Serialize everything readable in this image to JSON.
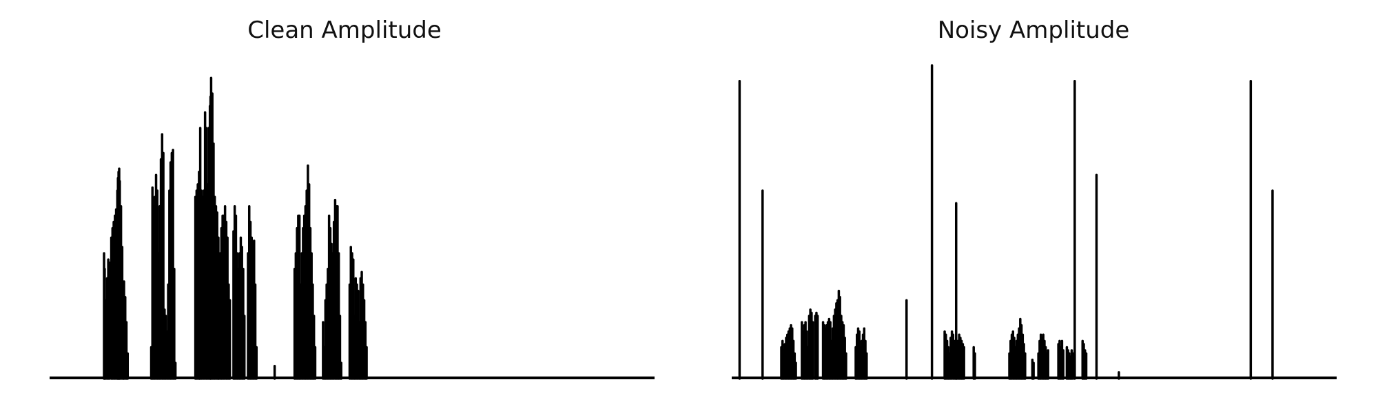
{
  "chart_data": [
    {
      "type": "area",
      "title": "Clean Amplitude",
      "xlabel": "",
      "ylabel": "",
      "axes_visible": false,
      "grid": false,
      "xlim": [
        0,
        1000
      ],
      "ylim": [
        0,
        1.0
      ],
      "color": "#000000",
      "peaks": [
        [
          90,
          0.4
        ],
        [
          91,
          0.35
        ],
        [
          93,
          0.25
        ],
        [
          95,
          0.32
        ],
        [
          97,
          0.38
        ],
        [
          99,
          0.37
        ],
        [
          102,
          0.45
        ],
        [
          104,
          0.48
        ],
        [
          106,
          0.5
        ],
        [
          108,
          0.52
        ],
        [
          110,
          0.54
        ],
        [
          112,
          0.6
        ],
        [
          113,
          0.64
        ],
        [
          114,
          0.66
        ],
        [
          115,
          0.67
        ],
        [
          116,
          0.63
        ],
        [
          118,
          0.55
        ],
        [
          120,
          0.42
        ],
        [
          122,
          0.3
        ],
        [
          123,
          0.31
        ],
        [
          125,
          0.26
        ],
        [
          127,
          0.18
        ],
        [
          129,
          0.08
        ],
        [
          168,
          0.1
        ],
        [
          170,
          0.61
        ],
        [
          172,
          0.55
        ],
        [
          174,
          0.58
        ],
        [
          176,
          0.65
        ],
        [
          178,
          0.6
        ],
        [
          180,
          0.4
        ],
        [
          182,
          0.55
        ],
        [
          184,
          0.7
        ],
        [
          186,
          0.78
        ],
        [
          188,
          0.72
        ],
        [
          190,
          0.22
        ],
        [
          192,
          0.2
        ],
        [
          194,
          0.15
        ],
        [
          196,
          0.3
        ],
        [
          198,
          0.6
        ],
        [
          200,
          0.69
        ],
        [
          202,
          0.72
        ],
        [
          204,
          0.73
        ],
        [
          206,
          0.35
        ],
        [
          208,
          0.05
        ],
        [
          241,
          0.58
        ],
        [
          243,
          0.6
        ],
        [
          245,
          0.62
        ],
        [
          247,
          0.66
        ],
        [
          248,
          0.55
        ],
        [
          249,
          0.8
        ],
        [
          251,
          0.6
        ],
        [
          253,
          0.58
        ],
        [
          255,
          0.6
        ],
        [
          257,
          0.85
        ],
        [
          259,
          0.8
        ],
        [
          261,
          0.62
        ],
        [
          263,
          0.8
        ],
        [
          265,
          0.87
        ],
        [
          266,
          0.9
        ],
        [
          267,
          0.96
        ],
        [
          269,
          0.91
        ],
        [
          271,
          0.75
        ],
        [
          273,
          0.58
        ],
        [
          275,
          0.55
        ],
        [
          277,
          0.53
        ],
        [
          279,
          0.45
        ],
        [
          280,
          0.33
        ],
        [
          282,
          0.4
        ],
        [
          284,
          0.48
        ],
        [
          286,
          0.52
        ],
        [
          288,
          0.52
        ],
        [
          290,
          0.55
        ],
        [
          292,
          0.5
        ],
        [
          294,
          0.45
        ],
        [
          296,
          0.3
        ],
        [
          298,
          0.25
        ],
        [
          304,
          0.47
        ],
        [
          306,
          0.55
        ],
        [
          308,
          0.52
        ],
        [
          310,
          0.4
        ],
        [
          312,
          0.35
        ],
        [
          314,
          0.4
        ],
        [
          316,
          0.45
        ],
        [
          318,
          0.42
        ],
        [
          320,
          0.35
        ],
        [
          322,
          0.2
        ],
        [
          328,
          0.4
        ],
        [
          330,
          0.55
        ],
        [
          332,
          0.5
        ],
        [
          334,
          0.45
        ],
        [
          336,
          0.43
        ],
        [
          338,
          0.44
        ],
        [
          340,
          0.3
        ],
        [
          342,
          0.1
        ],
        [
          372,
          0.04
        ],
        [
          405,
          0.35
        ],
        [
          407,
          0.4
        ],
        [
          409,
          0.48
        ],
        [
          411,
          0.52
        ],
        [
          413,
          0.52
        ],
        [
          415,
          0.3
        ],
        [
          417,
          0.4
        ],
        [
          419,
          0.48
        ],
        [
          421,
          0.52
        ],
        [
          423,
          0.55
        ],
        [
          425,
          0.6
        ],
        [
          427,
          0.68
        ],
        [
          429,
          0.62
        ],
        [
          431,
          0.48
        ],
        [
          433,
          0.4
        ],
        [
          435,
          0.3
        ],
        [
          437,
          0.2
        ],
        [
          439,
          0.1
        ],
        [
          452,
          0.18
        ],
        [
          454,
          0.1
        ],
        [
          456,
          0.25
        ],
        [
          458,
          0.3
        ],
        [
          460,
          0.35
        ],
        [
          462,
          0.52
        ],
        [
          464,
          0.48
        ],
        [
          466,
          0.43
        ],
        [
          468,
          0.4
        ],
        [
          470,
          0.5
        ],
        [
          472,
          0.57
        ],
        [
          474,
          0.55
        ],
        [
          476,
          0.55
        ],
        [
          478,
          0.4
        ],
        [
          480,
          0.2
        ],
        [
          482,
          0.05
        ],
        [
          496,
          0.3
        ],
        [
          498,
          0.42
        ],
        [
          500,
          0.4
        ],
        [
          502,
          0.38
        ],
        [
          504,
          0.2
        ],
        [
          506,
          0.32
        ],
        [
          508,
          0.3
        ],
        [
          510,
          0.28
        ],
        [
          512,
          0.18
        ],
        [
          514,
          0.32
        ],
        [
          516,
          0.34
        ],
        [
          518,
          0.3
        ],
        [
          520,
          0.25
        ],
        [
          522,
          0.18
        ],
        [
          524,
          0.1
        ]
      ]
    },
    {
      "type": "area",
      "title": "Noisy Amplitude",
      "xlabel": "",
      "ylabel": "",
      "axes_visible": false,
      "grid": false,
      "xlim": [
        0,
        1000
      ],
      "ylim": [
        0,
        1.0
      ],
      "color": "#000000",
      "peaks": [
        [
          13,
          0.95
        ],
        [
          51,
          0.6
        ],
        [
          82,
          0.1
        ],
        [
          84,
          0.12
        ],
        [
          86,
          0.09
        ],
        [
          88,
          0.11
        ],
        [
          90,
          0.13
        ],
        [
          92,
          0.14
        ],
        [
          94,
          0.15
        ],
        [
          96,
          0.16
        ],
        [
          98,
          0.17
        ],
        [
          100,
          0.16
        ],
        [
          102,
          0.12
        ],
        [
          104,
          0.08
        ],
        [
          106,
          0.05
        ],
        [
          116,
          0.18
        ],
        [
          118,
          0.15
        ],
        [
          120,
          0.17
        ],
        [
          122,
          0.18
        ],
        [
          124,
          0.15
        ],
        [
          126,
          0.1
        ],
        [
          128,
          0.2
        ],
        [
          130,
          0.22
        ],
        [
          132,
          0.21
        ],
        [
          134,
          0.18
        ],
        [
          138,
          0.2
        ],
        [
          140,
          0.21
        ],
        [
          142,
          0.2
        ],
        [
          151,
          0.18
        ],
        [
          153,
          0.17
        ],
        [
          155,
          0.16
        ],
        [
          157,
          0.17
        ],
        [
          159,
          0.18
        ],
        [
          161,
          0.19
        ],
        [
          163,
          0.18
        ],
        [
          165,
          0.12
        ],
        [
          167,
          0.16
        ],
        [
          169,
          0.2
        ],
        [
          171,
          0.22
        ],
        [
          173,
          0.24
        ],
        [
          175,
          0.25
        ],
        [
          177,
          0.28
        ],
        [
          179,
          0.26
        ],
        [
          181,
          0.2
        ],
        [
          183,
          0.18
        ],
        [
          185,
          0.17
        ],
        [
          187,
          0.13
        ],
        [
          189,
          0.08
        ],
        [
          205,
          0.1
        ],
        [
          207,
          0.14
        ],
        [
          209,
          0.16
        ],
        [
          211,
          0.15
        ],
        [
          213,
          0.1
        ],
        [
          215,
          0.12
        ],
        [
          217,
          0.14
        ],
        [
          219,
          0.16
        ],
        [
          221,
          0.12
        ],
        [
          223,
          0.08
        ],
        [
          289,
          0.25
        ],
        [
          331,
          1.0
        ],
        [
          371,
          0.56
        ],
        [
          352,
          0.15
        ],
        [
          354,
          0.14
        ],
        [
          356,
          0.12
        ],
        [
          358,
          0.1
        ],
        [
          360,
          0.08
        ],
        [
          362,
          0.13
        ],
        [
          364,
          0.15
        ],
        [
          366,
          0.14
        ],
        [
          368,
          0.12
        ],
        [
          370,
          0.1
        ],
        [
          372,
          0.08
        ],
        [
          374,
          0.12
        ],
        [
          376,
          0.14
        ],
        [
          378,
          0.13
        ],
        [
          380,
          0.12
        ],
        [
          382,
          0.11
        ],
        [
          384,
          0.1
        ],
        [
          400,
          0.1
        ],
        [
          402,
          0.08
        ],
        [
          459,
          0.08
        ],
        [
          461,
          0.12
        ],
        [
          463,
          0.14
        ],
        [
          465,
          0.15
        ],
        [
          467,
          0.13
        ],
        [
          469,
          0.1
        ],
        [
          471,
          0.12
        ],
        [
          473,
          0.14
        ],
        [
          475,
          0.16
        ],
        [
          477,
          0.19
        ],
        [
          479,
          0.17
        ],
        [
          481,
          0.14
        ],
        [
          483,
          0.11
        ],
        [
          485,
          0.08
        ],
        [
          497,
          0.06
        ],
        [
          499,
          0.05
        ],
        [
          507,
          0.08
        ],
        [
          509,
          0.12
        ],
        [
          511,
          0.14
        ],
        [
          513,
          0.13
        ],
        [
          515,
          0.14
        ],
        [
          517,
          0.12
        ],
        [
          519,
          0.1
        ],
        [
          521,
          0.08
        ],
        [
          523,
          0.09
        ],
        [
          540,
          0.11
        ],
        [
          542,
          0.12
        ],
        [
          544,
          0.1
        ],
        [
          546,
          0.12
        ],
        [
          548,
          0.09
        ],
        [
          554,
          0.1
        ],
        [
          556,
          0.09
        ],
        [
          558,
          0.08
        ],
        [
          560,
          0.07
        ],
        [
          562,
          0.09
        ],
        [
          564,
          0.08
        ],
        [
          580,
          0.12
        ],
        [
          582,
          0.11
        ],
        [
          584,
          0.09
        ],
        [
          586,
          0.08
        ],
        [
          567,
          0.95
        ],
        [
          603,
          0.65
        ],
        [
          858,
          0.95
        ],
        [
          894,
          0.6
        ],
        [
          640,
          0.02
        ]
      ]
    }
  ]
}
